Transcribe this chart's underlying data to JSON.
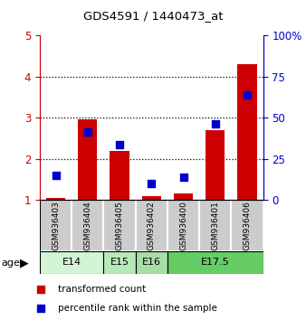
{
  "title": "GDS4591 / 1440473_at",
  "samples": [
    "GSM936403",
    "GSM936404",
    "GSM936405",
    "GSM936402",
    "GSM936400",
    "GSM936401",
    "GSM936406"
  ],
  "transformed_count": [
    1.05,
    2.95,
    2.2,
    1.1,
    1.15,
    2.7,
    4.3
  ],
  "percentile_rank_left": [
    1.6,
    2.65,
    2.35,
    1.4,
    1.55,
    2.85,
    3.55
  ],
  "age_groups": [
    {
      "label": "E14",
      "start": 0,
      "end": 1,
      "color": "#d4f5d4"
    },
    {
      "label": "E15",
      "start": 2,
      "end": 2,
      "color": "#b8e8b8"
    },
    {
      "label": "E16",
      "start": 3,
      "end": 3,
      "color": "#a8dda8"
    },
    {
      "label": "E17.5",
      "start": 4,
      "end": 6,
      "color": "#66cc66"
    }
  ],
  "ylim_left": [
    1,
    5
  ],
  "ylim_right": [
    0,
    100
  ],
  "yticks_left": [
    1,
    2,
    3,
    4,
    5
  ],
  "yticks_right": [
    0,
    25,
    50,
    75,
    100
  ],
  "yticklabels_right": [
    "0",
    "25",
    "50",
    "75",
    "100%"
  ],
  "left_axis_color": "#cc0000",
  "right_axis_color": "#0000cc",
  "bar_color": "#cc0000",
  "dot_color": "#0000cc",
  "bar_width": 0.6,
  "dot_size": 35,
  "sample_box_color": "#cccccc",
  "legend_items": [
    {
      "color": "#cc0000",
      "label": "transformed count"
    },
    {
      "color": "#0000cc",
      "label": "percentile rank within the sample"
    }
  ]
}
